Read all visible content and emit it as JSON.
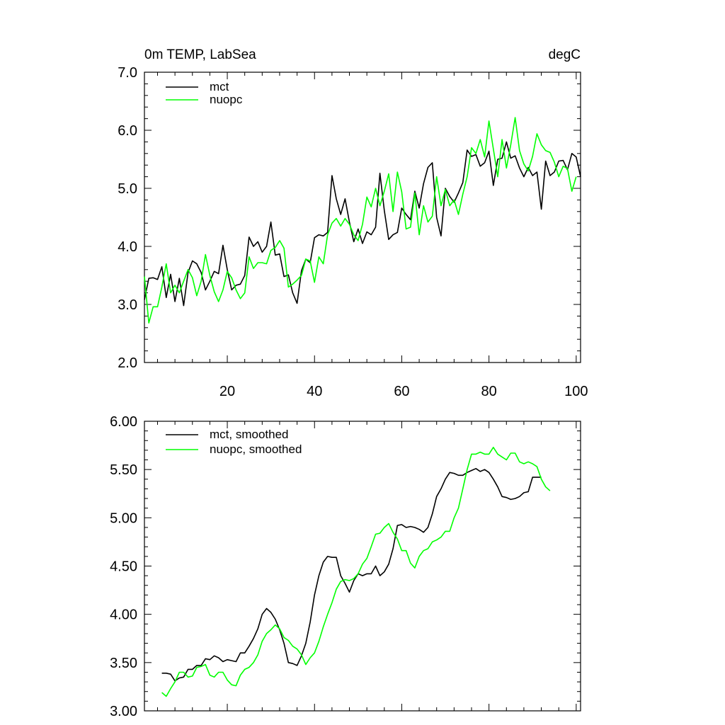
{
  "chart_data": [
    {
      "type": "line",
      "title": "0m TEMP, LabSea",
      "units": "degC",
      "xlabel": "",
      "ylabel": "",
      "xlim": [
        1,
        101
      ],
      "ylim": [
        2.0,
        7.0
      ],
      "xticks": [
        20,
        40,
        60,
        80,
        100
      ],
      "yticks": [
        2.0,
        3.0,
        4.0,
        5.0,
        6.0,
        7.0
      ],
      "ytick_labels": [
        "2.0",
        "3.0",
        "4.0",
        "5.0",
        "6.0",
        "7.0"
      ],
      "xtick_labels": [
        "20",
        "40",
        "60",
        "80",
        "100"
      ],
      "legend_position": "top-left",
      "series": [
        {
          "name": "mct",
          "color": "#000000",
          "x_start": 1,
          "values": [
            3.08,
            3.45,
            3.46,
            3.43,
            3.65,
            3.12,
            3.52,
            3.05,
            3.45,
            2.98,
            3.55,
            3.75,
            3.7,
            3.55,
            3.25,
            3.4,
            3.57,
            3.53,
            4.02,
            3.6,
            3.25,
            3.33,
            3.35,
            3.5,
            4.16,
            4.0,
            4.08,
            3.9,
            4.0,
            4.42,
            3.85,
            3.87,
            3.48,
            3.51,
            3.2,
            3.02,
            3.58,
            3.78,
            3.72,
            4.15,
            4.2,
            4.18,
            4.24,
            5.22,
            4.82,
            4.55,
            4.82,
            4.42,
            4.08,
            4.3,
            4.05,
            4.25,
            4.2,
            4.33,
            5.26,
            4.62,
            4.12,
            4.2,
            4.24,
            4.66,
            4.55,
            4.46,
            4.95,
            4.66,
            5.08,
            5.36,
            5.44,
            4.5,
            4.18,
            5.0,
            4.86,
            4.76,
            4.92,
            5.1,
            5.66,
            5.55,
            5.58,
            5.38,
            5.44,
            5.64,
            5.05,
            5.5,
            5.52,
            5.8,
            5.52,
            5.56,
            5.35,
            5.2,
            5.36,
            5.22,
            5.28,
            4.64,
            5.47,
            5.22,
            5.28,
            5.47,
            5.48,
            5.32,
            5.6,
            5.54,
            5.2
          ]
        },
        {
          "name": "nuopc",
          "color": "#00ff00",
          "x_start": 1,
          "values": [
            3.48,
            2.68,
            2.96,
            2.96,
            3.3,
            3.7,
            3.2,
            3.33,
            3.2,
            3.4,
            3.6,
            3.46,
            3.15,
            3.4,
            3.86,
            3.5,
            3.22,
            3.05,
            3.25,
            3.57,
            3.46,
            3.25,
            3.1,
            3.2,
            3.82,
            3.62,
            3.72,
            3.72,
            3.7,
            3.93,
            3.98,
            4.1,
            3.97,
            3.3,
            3.35,
            3.42,
            3.5,
            3.78,
            3.75,
            3.38,
            3.82,
            3.7,
            4.2,
            4.4,
            4.48,
            4.35,
            4.48,
            4.38,
            4.2,
            4.1,
            4.38,
            4.85,
            4.68,
            5.0,
            4.7,
            4.95,
            5.25,
            4.6,
            5.28,
            4.94,
            4.3,
            4.33,
            4.92,
            4.2,
            4.7,
            4.42,
            4.52,
            5.2,
            4.7,
            4.98,
            4.7,
            4.8,
            4.55,
            4.9,
            5.2,
            5.7,
            5.6,
            5.84,
            5.54,
            6.16,
            5.68,
            5.2,
            5.84,
            5.35,
            5.75,
            6.22,
            5.65,
            5.42,
            5.3,
            5.55,
            5.94,
            5.75,
            5.65,
            5.62,
            5.45,
            5.2,
            5.38,
            5.34,
            4.95,
            5.2
          ]
        }
      ]
    },
    {
      "type": "line",
      "title": "",
      "xlabel": "",
      "ylabel": "",
      "xlim": [
        1,
        101
      ],
      "ylim": [
        3.0,
        6.0
      ],
      "xticks": [
        20,
        40,
        60,
        80,
        100
      ],
      "yticks": [
        3.0,
        3.5,
        4.0,
        4.5,
        5.0,
        5.5,
        6.0
      ],
      "ytick_labels": [
        "3.00",
        "3.50",
        "4.00",
        "4.50",
        "5.00",
        "5.50",
        "6.00"
      ],
      "legend_position": "top-left",
      "series": [
        {
          "name": "mct, smoothed",
          "color": "#000000",
          "x_start": 5,
          "values": [
            3.39,
            3.39,
            3.38,
            3.31,
            3.34,
            3.35,
            3.43,
            3.43,
            3.47,
            3.47,
            3.54,
            3.53,
            3.57,
            3.55,
            3.51,
            3.53,
            3.52,
            3.51,
            3.6,
            3.6,
            3.67,
            3.75,
            3.85,
            4.0,
            4.06,
            4.02,
            3.95,
            3.84,
            3.7,
            3.5,
            3.49,
            3.47,
            3.57,
            3.7,
            3.92,
            4.2,
            4.4,
            4.54,
            4.6,
            4.59,
            4.59,
            4.4,
            4.32,
            4.23,
            4.35,
            4.42,
            4.4,
            4.42,
            4.42,
            4.5,
            4.4,
            4.44,
            4.52,
            4.68,
            4.92,
            4.93,
            4.9,
            4.91,
            4.9,
            4.88,
            4.85,
            4.9,
            5.04,
            5.22,
            5.3,
            5.4,
            5.47,
            5.46,
            5.44,
            5.44,
            5.47,
            5.49,
            5.51,
            5.48,
            5.5,
            5.47,
            5.4,
            5.32,
            5.22,
            5.21,
            5.19,
            5.2,
            5.22,
            5.26,
            5.27,
            5.42,
            5.42,
            5.42
          ]
        },
        {
          "name": "nuopc, smoothed",
          "color": "#00ff00",
          "x_start": 5,
          "values": [
            3.19,
            3.15,
            3.23,
            3.3,
            3.4,
            3.4,
            3.35,
            3.36,
            3.45,
            3.46,
            3.48,
            3.37,
            3.35,
            3.4,
            3.4,
            3.32,
            3.27,
            3.26,
            3.37,
            3.43,
            3.45,
            3.5,
            3.58,
            3.72,
            3.8,
            3.84,
            3.89,
            3.85,
            3.76,
            3.73,
            3.67,
            3.64,
            3.58,
            3.48,
            3.55,
            3.6,
            3.72,
            3.87,
            4.0,
            4.12,
            4.26,
            4.34,
            4.36,
            4.35,
            4.37,
            4.42,
            4.52,
            4.58,
            4.7,
            4.83,
            4.84,
            4.9,
            4.94,
            4.85,
            4.78,
            4.66,
            4.66,
            4.53,
            4.48,
            4.6,
            4.66,
            4.68,
            4.75,
            4.77,
            4.8,
            4.86,
            4.86,
            5.0,
            5.1,
            5.3,
            5.5,
            5.66,
            5.66,
            5.68,
            5.66,
            5.66,
            5.73,
            5.66,
            5.63,
            5.6,
            5.67,
            5.67,
            5.58,
            5.56,
            5.58,
            5.56,
            5.53,
            5.4,
            5.32,
            5.28
          ]
        }
      ]
    }
  ]
}
